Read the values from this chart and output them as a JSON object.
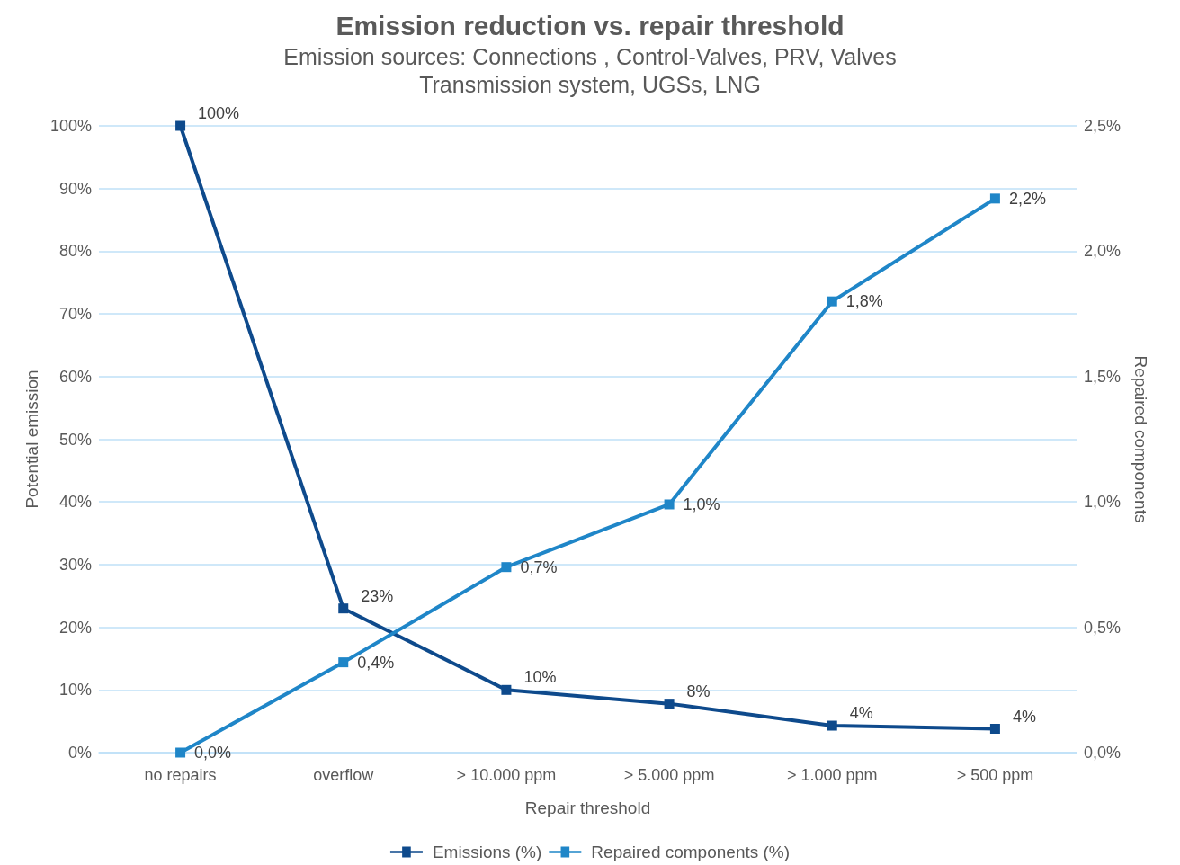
{
  "chart_data": {
    "type": "line",
    "title": "Emission reduction vs. repair threshold",
    "subtitle": "Emission sources: Connections , Control-Valves, PRV, Valves\nTransmission system, UGSs, LNG",
    "xlabel": "Repair threshold",
    "ylabel": "Potential emission",
    "y2label": "Repaired components",
    "categories": [
      "no repairs",
      "overflow",
      "> 10.000 ppm",
      "> 5.000 ppm",
      "> 1.000 ppm",
      "> 500 ppm"
    ],
    "series": [
      {
        "name": "Emissions (%)",
        "color": "#0e4a8c",
        "values": [
          100,
          23,
          10,
          7.8,
          4.3,
          3.8
        ],
        "value_labels": [
          "100%",
          "23%",
          "10%",
          "8%",
          "4%",
          "4%"
        ]
      },
      {
        "name": "Repaired components (%)",
        "color": "#1f86c8",
        "axis": "y2",
        "values": [
          0,
          0.36,
          0.74,
          0.99,
          1.8,
          2.21
        ],
        "value_labels": [
          "0,0%",
          "0,4%",
          "0,7%",
          "1,0%",
          "1,8%",
          "2,2%"
        ]
      }
    ],
    "ylim": [
      0,
      100
    ],
    "yticks": [
      {
        "value": 0,
        "label": "0%"
      },
      {
        "value": 10,
        "label": "10%"
      },
      {
        "value": 20,
        "label": "20%"
      },
      {
        "value": 30,
        "label": "30%"
      },
      {
        "value": 40,
        "label": "40%"
      },
      {
        "value": 50,
        "label": "50%"
      },
      {
        "value": 60,
        "label": "60%"
      },
      {
        "value": 70,
        "label": "70%"
      },
      {
        "value": 80,
        "label": "80%"
      },
      {
        "value": 90,
        "label": "90%"
      },
      {
        "value": 100,
        "label": "100%"
      }
    ],
    "y2lim": [
      0,
      2.5
    ],
    "y2ticks": [
      {
        "value": 0,
        "label": "0,0%"
      },
      {
        "value": 0.5,
        "label": "0,5%"
      },
      {
        "value": 1,
        "label": "1,0%"
      },
      {
        "value": 1.5,
        "label": "1,5%"
      },
      {
        "value": 2,
        "label": "2,0%"
      },
      {
        "value": 2.5,
        "label": "2,5%"
      }
    ],
    "grid": "y",
    "legend": "bottom",
    "marker": "square",
    "line_style": "solid"
  }
}
